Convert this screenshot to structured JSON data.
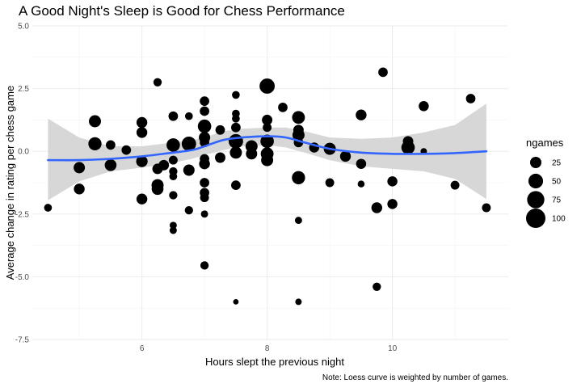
{
  "chart_data": {
    "type": "scatter",
    "title": "A Good Night's Sleep is Good for Chess Performance",
    "xlabel": "Hours slept the previous night",
    "ylabel": "Average change in rating per chess game",
    "caption": "Note: Loess curve is weighted by number of games.",
    "xlim": [
      4.25,
      11.85
    ],
    "ylim": [
      -7.5,
      5.0
    ],
    "x_ticks": [
      6,
      8,
      10
    ],
    "x_minor_ticks": [
      5,
      7,
      9,
      11
    ],
    "y_ticks": [
      5.0,
      2.5,
      0.0,
      -2.5,
      -5.0,
      -7.5
    ],
    "y_tick_labels": [
      "5.0",
      "2.5",
      "0.0",
      "-2.5",
      "-5.0",
      "-7.5"
    ],
    "y_minor_ticks": [
      3.75,
      1.25,
      -1.25,
      -3.75,
      -6.25
    ],
    "legend": {
      "title": "ngames",
      "sizes": [
        25,
        50,
        75,
        100
      ],
      "labels": [
        "25",
        "50",
        "75",
        "100"
      ],
      "position": "right"
    },
    "point_color": "#000000",
    "smooth_color": "#3366ff",
    "ribbon_color": "#d3d3d3",
    "points": [
      {
        "x": 4.5,
        "y": -2.25,
        "n": 8
      },
      {
        "x": 5.0,
        "y": -0.65,
        "n": 25
      },
      {
        "x": 5.0,
        "y": -1.5,
        "n": 22
      },
      {
        "x": 5.25,
        "y": 1.2,
        "n": 30
      },
      {
        "x": 5.25,
        "y": 0.3,
        "n": 38
      },
      {
        "x": 5.5,
        "y": 0.25,
        "n": 15
      },
      {
        "x": 5.5,
        "y": -0.55,
        "n": 28
      },
      {
        "x": 5.75,
        "y": 0.05,
        "n": 15
      },
      {
        "x": 6.0,
        "y": 1.15,
        "n": 22
      },
      {
        "x": 6.0,
        "y": 0.75,
        "n": 22
      },
      {
        "x": 6.0,
        "y": -0.4,
        "n": 26
      },
      {
        "x": 6.0,
        "y": -1.9,
        "n": 22
      },
      {
        "x": 6.25,
        "y": 2.75,
        "n": 10
      },
      {
        "x": 6.25,
        "y": -0.7,
        "n": 20
      },
      {
        "x": 6.25,
        "y": -1.35,
        "n": 30
      },
      {
        "x": 6.25,
        "y": -1.5,
        "n": 28
      },
      {
        "x": 6.35,
        "y": -0.55,
        "n": 20
      },
      {
        "x": 6.5,
        "y": 1.4,
        "n": 15
      },
      {
        "x": 6.5,
        "y": 0.25,
        "n": 40
      },
      {
        "x": 6.5,
        "y": -0.35,
        "n": 12
      },
      {
        "x": 6.5,
        "y": -0.8,
        "n": 10
      },
      {
        "x": 6.5,
        "y": -1.0,
        "n": 8
      },
      {
        "x": 6.5,
        "y": -1.75,
        "n": 10
      },
      {
        "x": 6.5,
        "y": -2.95,
        "n": 6
      },
      {
        "x": 6.5,
        "y": -3.15,
        "n": 6
      },
      {
        "x": 6.75,
        "y": 1.4,
        "n": 8
      },
      {
        "x": 6.75,
        "y": 0.3,
        "n": 48
      },
      {
        "x": 6.75,
        "y": -0.75,
        "n": 25
      },
      {
        "x": 6.75,
        "y": -2.35,
        "n": 10
      },
      {
        "x": 7.0,
        "y": 2.0,
        "n": 15
      },
      {
        "x": 7.0,
        "y": 1.6,
        "n": 15
      },
      {
        "x": 7.0,
        "y": 1.0,
        "n": 40
      },
      {
        "x": 7.0,
        "y": 0.55,
        "n": 25
      },
      {
        "x": 7.0,
        "y": 0.35,
        "n": 15
      },
      {
        "x": 7.0,
        "y": -0.3,
        "n": 15
      },
      {
        "x": 7.0,
        "y": -0.5,
        "n": 22
      },
      {
        "x": 7.0,
        "y": -1.25,
        "n": 15
      },
      {
        "x": 7.0,
        "y": -1.65,
        "n": 15
      },
      {
        "x": 7.0,
        "y": -1.85,
        "n": 12
      },
      {
        "x": 7.0,
        "y": -2.5,
        "n": 6
      },
      {
        "x": 7.0,
        "y": -4.55,
        "n": 10
      },
      {
        "x": 7.25,
        "y": 0.85,
        "n": 15
      },
      {
        "x": 7.25,
        "y": -0.25,
        "n": 20
      },
      {
        "x": 7.5,
        "y": 2.25,
        "n": 8
      },
      {
        "x": 7.5,
        "y": 1.5,
        "n": 8
      },
      {
        "x": 7.5,
        "y": 1.3,
        "n": 8
      },
      {
        "x": 7.5,
        "y": 0.95,
        "n": 15
      },
      {
        "x": 7.5,
        "y": 0.4,
        "n": 48
      },
      {
        "x": 7.5,
        "y": -0.05,
        "n": 30
      },
      {
        "x": 7.5,
        "y": -1.35,
        "n": 15
      },
      {
        "x": 7.5,
        "y": -6.0,
        "n": 2
      },
      {
        "x": 7.75,
        "y": 0.2,
        "n": 30
      },
      {
        "x": 7.75,
        "y": -0.1,
        "n": 25
      },
      {
        "x": 8.0,
        "y": 2.6,
        "n": 55
      },
      {
        "x": 8.0,
        "y": 1.25,
        "n": 20
      },
      {
        "x": 8.0,
        "y": 0.95,
        "n": 12
      },
      {
        "x": 8.0,
        "y": 0.4,
        "n": 40
      },
      {
        "x": 8.0,
        "y": -0.1,
        "n": 35
      },
      {
        "x": 8.0,
        "y": -0.35,
        "n": 30
      },
      {
        "x": 8.25,
        "y": 1.75,
        "n": 15
      },
      {
        "x": 8.5,
        "y": 1.35,
        "n": 35
      },
      {
        "x": 8.5,
        "y": 0.85,
        "n": 20
      },
      {
        "x": 8.5,
        "y": 0.65,
        "n": 30
      },
      {
        "x": 8.5,
        "y": 0.35,
        "n": 15
      },
      {
        "x": 8.5,
        "y": -1.05,
        "n": 38
      },
      {
        "x": 8.5,
        "y": -2.75,
        "n": 6
      },
      {
        "x": 8.5,
        "y": -6.0,
        "n": 4
      },
      {
        "x": 8.75,
        "y": 0.15,
        "n": 18
      },
      {
        "x": 9.0,
        "y": 0.1,
        "n": 30
      },
      {
        "x": 9.0,
        "y": -1.25,
        "n": 12
      },
      {
        "x": 9.25,
        "y": -0.2,
        "n": 22
      },
      {
        "x": 9.5,
        "y": 1.45,
        "n": 22
      },
      {
        "x": 9.5,
        "y": -0.5,
        "n": 18
      },
      {
        "x": 9.5,
        "y": -1.3,
        "n": 5
      },
      {
        "x": 9.75,
        "y": -2.25,
        "n": 22
      },
      {
        "x": 9.75,
        "y": -5.4,
        "n": 10
      },
      {
        "x": 9.85,
        "y": 3.15,
        "n": 15
      },
      {
        "x": 10.0,
        "y": -1.2,
        "n": 18
      },
      {
        "x": 10.0,
        "y": -2.1,
        "n": 18
      },
      {
        "x": 10.25,
        "y": 0.4,
        "n": 20
      },
      {
        "x": 10.25,
        "y": 0.15,
        "n": 40
      },
      {
        "x": 10.5,
        "y": 1.8,
        "n": 18
      },
      {
        "x": 10.5,
        "y": 0.0,
        "n": 4
      },
      {
        "x": 11.0,
        "y": -1.35,
        "n": 12
      },
      {
        "x": 11.25,
        "y": 2.1,
        "n": 15
      },
      {
        "x": 11.5,
        "y": -2.25,
        "n": 12
      }
    ],
    "smooth": {
      "x": [
        4.5,
        5.0,
        5.5,
        6.0,
        6.5,
        6.8,
        7.0,
        7.3,
        7.6,
        8.0,
        8.3,
        8.6,
        9.0,
        9.5,
        10.0,
        10.5,
        11.0,
        11.5
      ],
      "y": [
        -0.35,
        -0.35,
        -0.3,
        -0.2,
        -0.05,
        0.05,
        0.2,
        0.45,
        0.55,
        0.6,
        0.55,
        0.35,
        0.1,
        -0.05,
        -0.1,
        -0.1,
        -0.07,
        0.0
      ],
      "lower": [
        -1.95,
        -1.2,
        -0.8,
        -0.65,
        -0.45,
        -0.3,
        -0.15,
        0.05,
        0.2,
        0.25,
        0.15,
        -0.05,
        -0.35,
        -0.6,
        -0.7,
        -0.8,
        -1.1,
        -1.9
      ],
      "upper": [
        1.3,
        0.55,
        0.2,
        0.2,
        0.35,
        0.45,
        0.55,
        0.8,
        0.9,
        0.95,
        0.95,
        0.8,
        0.55,
        0.5,
        0.55,
        0.75,
        1.05,
        1.9
      ]
    }
  }
}
